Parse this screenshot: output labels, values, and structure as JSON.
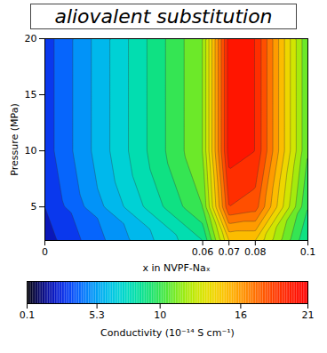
{
  "chart_data": {
    "type": "contour",
    "title": "aliovalent substitution",
    "x_label": "x in NVPF-Naₓ",
    "y_label": "Pressure (MPa)",
    "x": [
      0,
      0.06,
      0.07,
      0.08,
      0.1
    ],
    "y": [
      2,
      5,
      10,
      15,
      20
    ],
    "values": [
      [
        2.5,
        9,
        15,
        15,
        9
      ],
      [
        3,
        11,
        19,
        18.5,
        10
      ],
      [
        3.5,
        12,
        20.5,
        20,
        11
      ],
      [
        3.5,
        12,
        20.5,
        20,
        11
      ],
      [
        3.5,
        12,
        20.5,
        20,
        11
      ]
    ],
    "xlim": [
      0,
      0.1
    ],
    "xticks": [
      0,
      0.06,
      0.07,
      0.08,
      0.1
    ],
    "ylim": [
      2,
      20
    ],
    "yticks": [
      5,
      10,
      15,
      20
    ],
    "colorbar": {
      "label": "Conductivity (10⁻¹⁴ S cm⁻¹)",
      "range": [
        0.1,
        21
      ],
      "ticks": [
        0.1,
        5.3,
        10,
        16,
        21
      ]
    }
  }
}
